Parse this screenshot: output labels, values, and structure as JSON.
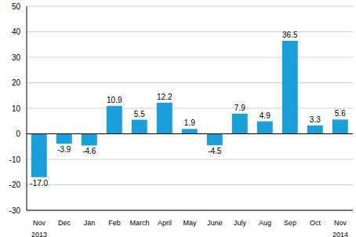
{
  "chart_data": {
    "type": "bar",
    "categories": [
      "Nov",
      "Dec",
      "Jan",
      "Feb",
      "March",
      "April",
      "May",
      "June",
      "July",
      "Aug",
      "Sep",
      "Oct",
      "Nov"
    ],
    "values": [
      -17.0,
      -3.9,
      -4.6,
      10.9,
      5.5,
      12.2,
      1.9,
      -4.5,
      7.9,
      4.9,
      36.5,
      3.3,
      5.6
    ],
    "value_labels": [
      "-17.0",
      "-3.9",
      "-4.6",
      "10.9",
      "5.5",
      "12.2",
      "1.9",
      "-4.5",
      "7.9",
      "4.9",
      "36.5",
      "3.3",
      "5.6"
    ],
    "annotations": [
      {
        "text": "2013",
        "category": 0
      },
      {
        "text": "2014",
        "category": 12
      }
    ],
    "color": "#1a9fd9",
    "ylim": [
      -30,
      50
    ],
    "yticks": [
      -30,
      -20,
      -10,
      0,
      10,
      20,
      30,
      40,
      50
    ],
    "grid": true,
    "data_labels": true
  }
}
